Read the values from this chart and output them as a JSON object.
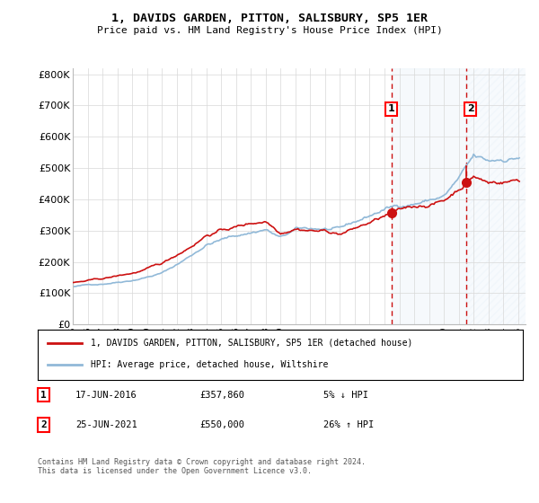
{
  "title": "1, DAVIDS GARDEN, PITTON, SALISBURY, SP5 1ER",
  "subtitle": "Price paid vs. HM Land Registry's House Price Index (HPI)",
  "legend_line1": "1, DAVIDS GARDEN, PITTON, SALISBURY, SP5 1ER (detached house)",
  "legend_line2": "HPI: Average price, detached house, Wiltshire",
  "transaction1_date": "17-JUN-2016",
  "transaction1_price": "£357,860",
  "transaction1_hpi": "5% ↓ HPI",
  "transaction1_year": 2016.46,
  "transaction1_value": 357860,
  "transaction2_date": "25-JUN-2021",
  "transaction2_price": "£550,000",
  "transaction2_hpi": "26% ↑ HPI",
  "transaction2_year": 2021.48,
  "transaction2_value": 550000,
  "ylim": [
    0,
    820000
  ],
  "xlim_start": 1995.0,
  "xlim_end": 2025.5,
  "yticks": [
    0,
    100000,
    200000,
    300000,
    400000,
    500000,
    600000,
    700000,
    800000
  ],
  "ytick_labels": [
    "£0",
    "£100K",
    "£200K",
    "£300K",
    "£400K",
    "£500K",
    "£600K",
    "£700K",
    "£800K"
  ],
  "hpi_color": "#91b9d8",
  "price_color": "#cc1111",
  "dashed_color": "#cc1111",
  "background_color": "#ffffff",
  "grid_color": "#d8d8d8",
  "footer": "Contains HM Land Registry data © Crown copyright and database right 2024.\nThis data is licensed under the Open Government Licence v3.0."
}
